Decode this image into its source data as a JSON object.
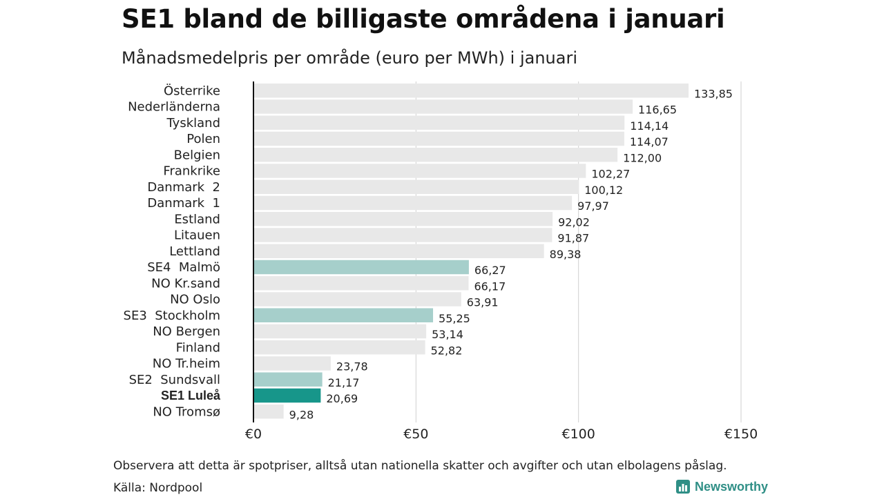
{
  "title": "SE1 bland de billigaste områdena i januari",
  "subtitle": "Månadsmedelpris per område (euro per MWh) i januari",
  "footer": {
    "note": "Observera att detta är spotpriser, alltså utan nationella skatter och avgifter och utan elbolagens påslag.",
    "source": "Källa: Nordpool",
    "brand": "Newsworthy"
  },
  "colors": {
    "default_bar": "#e8e8e8",
    "se_bar": "#a6cfcb",
    "highlight_bar": "#17968a",
    "brand": "#2f8f86"
  },
  "chart_data": {
    "type": "bar",
    "orientation": "horizontal",
    "categories": [
      "Österrike",
      "Nederländerna",
      "Tyskland",
      "Polen",
      "Belgien",
      "Frankrike",
      "Danmark  2",
      "Danmark  1",
      "Estland",
      "Litauen",
      "Lettland",
      "SE4  Malmö",
      "NO Kr.sand",
      "NO Oslo",
      "SE3  Stockholm",
      "NO Bergen",
      "Finland",
      "NO Tr.heim",
      "SE2  Sundsvall",
      "SE1 Luleå",
      "NO Tromsø"
    ],
    "values": [
      133.85,
      116.65,
      114.14,
      114.07,
      112.0,
      102.27,
      100.12,
      97.97,
      92.02,
      91.87,
      89.38,
      66.27,
      66.17,
      63.91,
      55.25,
      53.14,
      52.82,
      23.78,
      21.17,
      20.69,
      9.28
    ],
    "value_labels": [
      "133,85",
      "116,65",
      "114,14",
      "114,07",
      "112,00",
      "102,27",
      "100,12",
      "97,97",
      "92,02",
      "91,87",
      "89,38",
      "66,27",
      "66,17",
      "63,91",
      "55,25",
      "53,14",
      "52,82",
      "23,78",
      "21,17",
      "20,69",
      "9,28"
    ],
    "categories_se": [
      "SE4  Malmö",
      "SE3  Stockholm",
      "SE2  Sundsvall"
    ],
    "highlight_category": "SE1 Luleå",
    "xlim": [
      0,
      150
    ],
    "xticks": [
      0,
      50,
      100,
      150
    ],
    "xtick_labels": [
      "€0",
      "€50",
      "€100",
      "€150"
    ],
    "grid": true
  }
}
